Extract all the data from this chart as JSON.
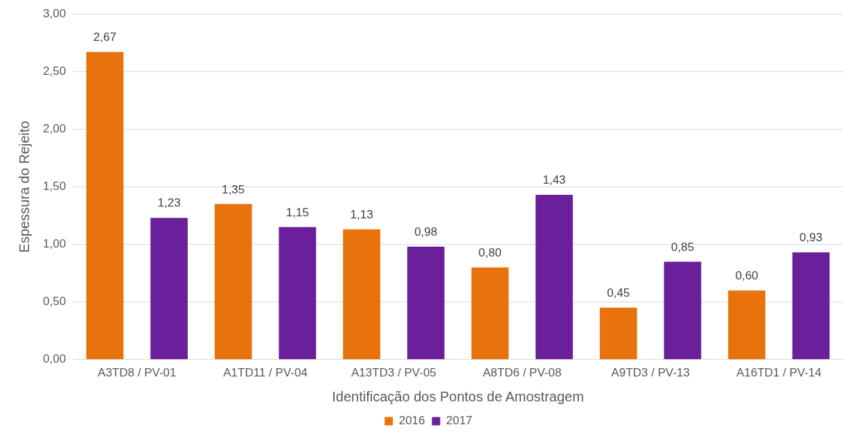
{
  "chart_data": {
    "type": "bar",
    "categories": [
      "A3TD8 / PV-01",
      "A1TD11 / PV-04",
      "A13TD3 / PV-05",
      "A8TD6 / PV-08",
      "A9TD3 / PV-13",
      "A16TD1 / PV-14"
    ],
    "series": [
      {
        "name": "2016",
        "color": "#e8730c",
        "values": [
          2.67,
          1.35,
          1.13,
          0.8,
          0.45,
          0.6
        ],
        "value_labels": [
          "2,67",
          "1,35",
          "1,13",
          "0,80",
          "0,45",
          "0,60"
        ]
      },
      {
        "name": "2017",
        "color": "#6a1f9b",
        "values": [
          1.23,
          1.15,
          0.98,
          1.43,
          0.85,
          0.93
        ],
        "value_labels": [
          "1,23",
          "1,15",
          "0,98",
          "1,43",
          "0,85",
          "0,93"
        ]
      }
    ],
    "xlabel": "Identificação dos Pontos de Amostragem",
    "ylabel": "Espessura do Rejeito",
    "ylim": [
      0,
      3
    ],
    "yticks": [
      {
        "value": 0,
        "label": "0,00"
      },
      {
        "value": 0.5,
        "label": "0,50"
      },
      {
        "value": 1,
        "label": "1,00"
      },
      {
        "value": 1.5,
        "label": "1,50"
      },
      {
        "value": 2,
        "label": "2,00"
      },
      {
        "value": 2.5,
        "label": "2,50"
      },
      {
        "value": 3,
        "label": "3,00"
      }
    ],
    "grid": "y",
    "legend": "bottom"
  }
}
